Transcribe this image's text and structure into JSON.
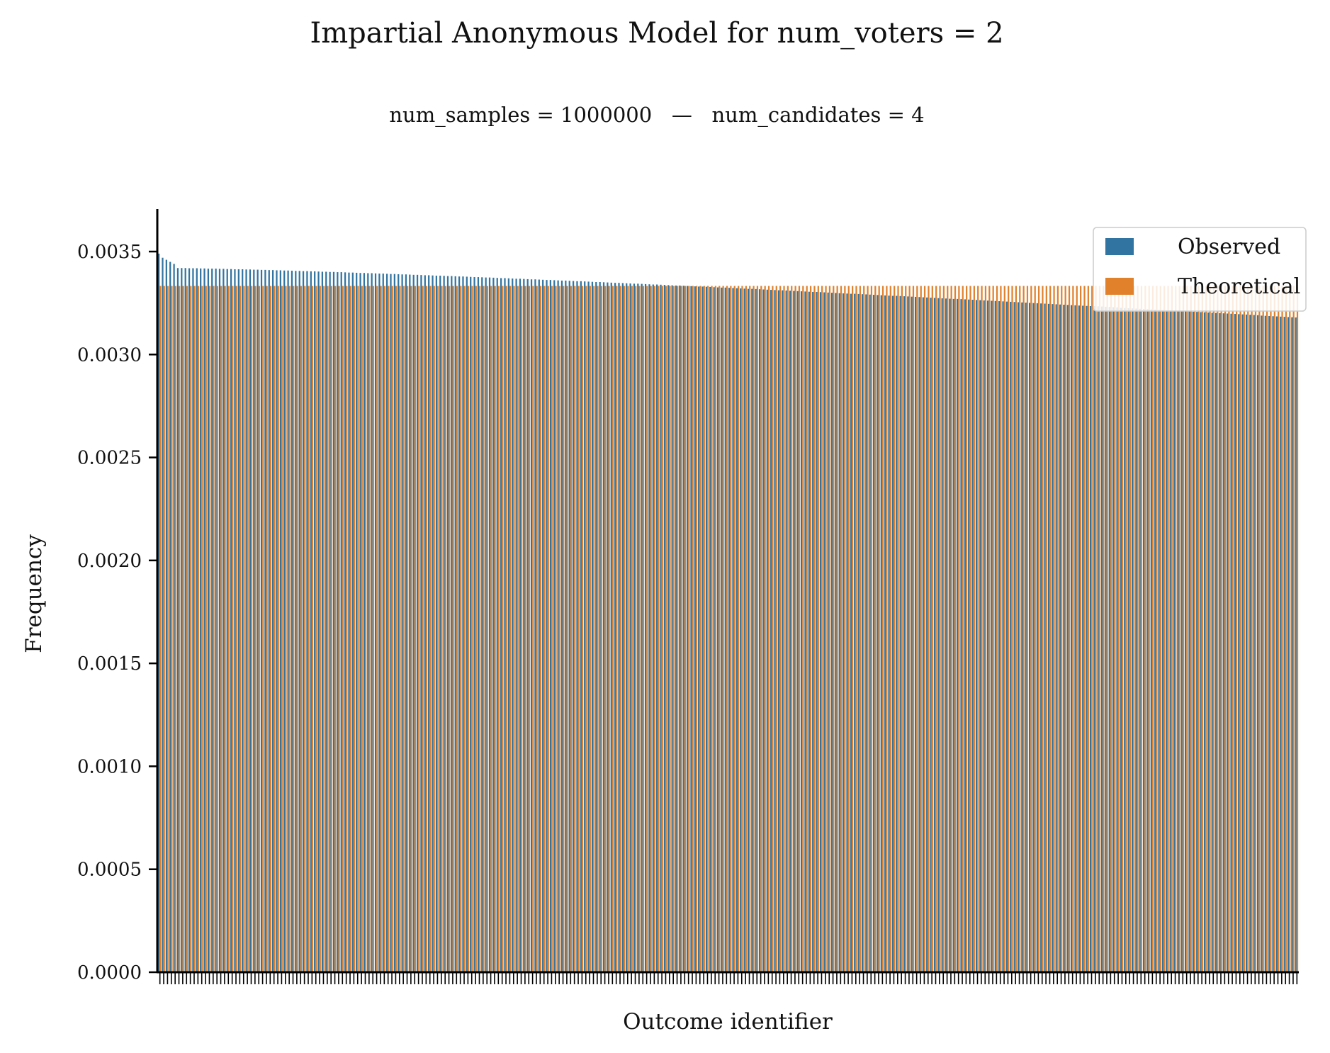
{
  "chart_data": {
    "type": "bar",
    "title": "Impartial Anonymous Model for num_voters = 2",
    "subtitle": "num_samples = 1000000   —   num_candidates = 4",
    "xlabel": "Outcome identifier",
    "ylabel": "Frequency",
    "ylim": [
      0,
      0.0037
    ],
    "yticks": [
      "0.0000",
      "0.0005",
      "0.0010",
      "0.0015",
      "0.0020",
      "0.0025",
      "0.0030",
      "0.0035"
    ],
    "ytick_values": [
      0,
      0.0005,
      0.001,
      0.0015,
      0.002,
      0.0025,
      0.003,
      0.0035
    ],
    "num_categories": 300,
    "series": [
      {
        "name": "Observed",
        "color": "#3274a1",
        "values_sorted_descending": true,
        "max": 0.00349,
        "first": [
          0.00349,
          0.00347,
          0.00346,
          0.00345,
          0.00344
        ],
        "min": 0.00318
      },
      {
        "name": "Theoretical",
        "color": "#e1812c",
        "constant": 0.003333
      }
    ],
    "legend": {
      "placement": "top-right",
      "entries": [
        "Observed",
        "Theoretical"
      ]
    },
    "grid": false
  }
}
